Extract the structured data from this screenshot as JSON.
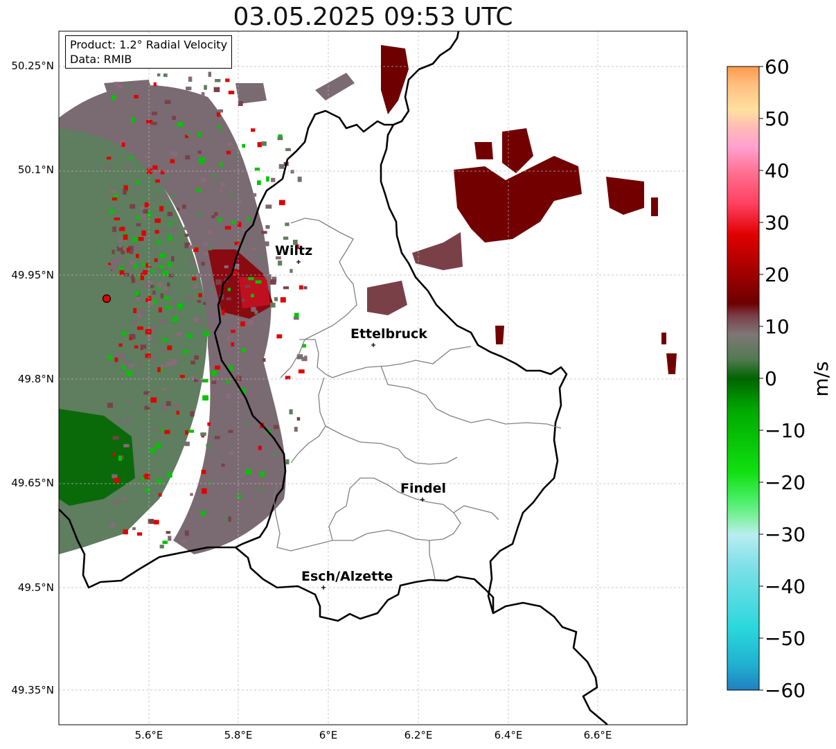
{
  "title": "03.05.2025 09:53 UTC",
  "info": {
    "product_line": "Product: 1.2° Radial Velocity",
    "data_line": "Data: RMIB"
  },
  "axes": {
    "lat_ticks": [
      "50.25°N",
      "50.1°N",
      "49.95°N",
      "49.8°N",
      "49.65°N",
      "49.5°N",
      "49.35°N"
    ],
    "lon_ticks": [
      "5.6°E",
      "5.8°E",
      "6°E",
      "6.2°E",
      "6.4°E",
      "6.6°E"
    ]
  },
  "cities": [
    {
      "name": "Wiltz"
    },
    {
      "name": "Ettelbruck"
    },
    {
      "name": "Findel"
    },
    {
      "name": "Esch/Alzette"
    }
  ],
  "colorbar": {
    "label": "m/s",
    "ticks": [
      "60",
      "50",
      "40",
      "30",
      "20",
      "10",
      "0",
      "−10",
      "−20",
      "−30",
      "−40",
      "−50",
      "−60"
    ],
    "range": [
      -60,
      60
    ],
    "colors": {
      "velocity_neg_cyan": "#2ad8dc",
      "velocity_neg_green": "#00c400",
      "velocity_neg_darkgreen": "#006400",
      "velocity_zero_gray": "#7d7878",
      "velocity_pos_maroon": "#7a0000",
      "velocity_pos_red": "#e00000",
      "velocity_pos_pink": "#ff80c0",
      "velocity_pos_orange": "#ff9a4d"
    }
  },
  "radar_site": {
    "color": "#e00000"
  }
}
